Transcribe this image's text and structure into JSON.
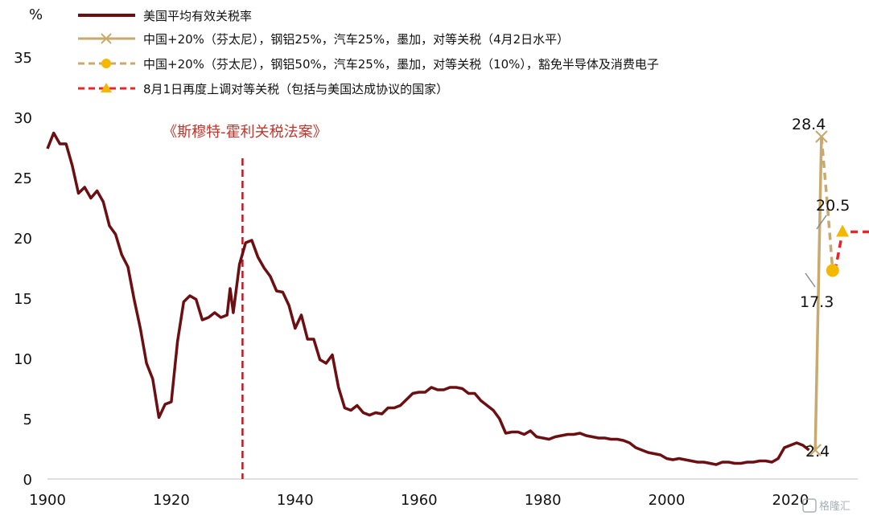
{
  "chart_data": {
    "type": "line",
    "ylabel": "%",
    "xlim": [
      1900,
      2030
    ],
    "ylim": [
      0,
      35
    ],
    "x_ticks": [
      "1900",
      "1920",
      "1940",
      "1960",
      "1980",
      "2000",
      "2020"
    ],
    "y_ticks": [
      "0",
      "5",
      "10",
      "15",
      "20",
      "25",
      "30",
      "35"
    ],
    "grid": false,
    "legend_position": "top-left",
    "colors": {
      "history": "#6b0f12",
      "scenario_april": "#c8a96e",
      "scenario_exempt": "#c8a96e",
      "scenario_august": "#e8262a",
      "marker_circle": "#f5b800",
      "marker_triangle": "#f5b800",
      "act_line": "#c0191f",
      "act_text": "#c0352b"
    },
    "series": [
      {
        "name": "美国平均有效关税率",
        "points": [
          [
            1900,
            27.4
          ],
          [
            1901,
            28.7
          ],
          [
            1902,
            27.8
          ],
          [
            1903,
            27.8
          ],
          [
            1904,
            26.0
          ],
          [
            1905,
            23.7
          ],
          [
            1906,
            24.2
          ],
          [
            1907,
            23.3
          ],
          [
            1908,
            23.9
          ],
          [
            1909,
            23.0
          ],
          [
            1910,
            21.0
          ],
          [
            1911,
            20.3
          ],
          [
            1912,
            18.6
          ],
          [
            1913,
            17.6
          ],
          [
            1914,
            14.9
          ],
          [
            1915,
            12.5
          ],
          [
            1916,
            9.6
          ],
          [
            1917,
            8.3
          ],
          [
            1918,
            5.1
          ],
          [
            1919,
            6.2
          ],
          [
            1920,
            6.4
          ],
          [
            1921,
            11.4
          ],
          [
            1922,
            14.7
          ],
          [
            1923,
            15.2
          ],
          [
            1924,
            14.9
          ],
          [
            1925,
            13.2
          ],
          [
            1926,
            13.4
          ],
          [
            1927,
            13.8
          ],
          [
            1928,
            13.4
          ],
          [
            1929,
            13.6
          ],
          [
            1929.5,
            15.8
          ],
          [
            1930,
            13.8
          ],
          [
            1931,
            17.8
          ],
          [
            1932,
            19.6
          ],
          [
            1933,
            19.8
          ],
          [
            1934,
            18.4
          ],
          [
            1935,
            17.5
          ],
          [
            1936,
            16.8
          ],
          [
            1937,
            15.6
          ],
          [
            1938,
            15.5
          ],
          [
            1939,
            14.4
          ],
          [
            1940,
            12.5
          ],
          [
            1941,
            13.6
          ],
          [
            1942,
            11.6
          ],
          [
            1943,
            11.6
          ],
          [
            1944,
            9.9
          ],
          [
            1945,
            9.6
          ],
          [
            1946,
            10.3
          ],
          [
            1947,
            7.6
          ],
          [
            1948,
            5.9
          ],
          [
            1949,
            5.7
          ],
          [
            1950,
            6.1
          ],
          [
            1951,
            5.5
          ],
          [
            1952,
            5.3
          ],
          [
            1953,
            5.5
          ],
          [
            1954,
            5.4
          ],
          [
            1955,
            5.9
          ],
          [
            1956,
            5.9
          ],
          [
            1957,
            6.1
          ],
          [
            1958,
            6.6
          ],
          [
            1959,
            7.1
          ],
          [
            1960,
            7.2
          ],
          [
            1961,
            7.2
          ],
          [
            1962,
            7.6
          ],
          [
            1963,
            7.4
          ],
          [
            1964,
            7.4
          ],
          [
            1965,
            7.6
          ],
          [
            1966,
            7.6
          ],
          [
            1967,
            7.5
          ],
          [
            1968,
            7.1
          ],
          [
            1969,
            7.1
          ],
          [
            1970,
            6.5
          ],
          [
            1971,
            6.1
          ],
          [
            1972,
            5.7
          ],
          [
            1973,
            5.0
          ],
          [
            1974,
            3.8
          ],
          [
            1975,
            3.9
          ],
          [
            1976,
            3.9
          ],
          [
            1977,
            3.7
          ],
          [
            1978,
            4.0
          ],
          [
            1979,
            3.5
          ],
          [
            1980,
            3.4
          ],
          [
            1981,
            3.3
          ],
          [
            1982,
            3.5
          ],
          [
            1983,
            3.6
          ],
          [
            1984,
            3.7
          ],
          [
            1985,
            3.7
          ],
          [
            1986,
            3.8
          ],
          [
            1987,
            3.6
          ],
          [
            1988,
            3.5
          ],
          [
            1989,
            3.4
          ],
          [
            1990,
            3.4
          ],
          [
            1991,
            3.3
          ],
          [
            1992,
            3.3
          ],
          [
            1993,
            3.2
          ],
          [
            1994,
            3.0
          ],
          [
            1995,
            2.6
          ],
          [
            1996,
            2.4
          ],
          [
            1997,
            2.2
          ],
          [
            1998,
            2.1
          ],
          [
            1999,
            2.0
          ],
          [
            2000,
            1.7
          ],
          [
            2001,
            1.6
          ],
          [
            2002,
            1.7
          ],
          [
            2003,
            1.6
          ],
          [
            2004,
            1.5
          ],
          [
            2005,
            1.4
          ],
          [
            2006,
            1.4
          ],
          [
            2007,
            1.3
          ],
          [
            2008,
            1.2
          ],
          [
            2009,
            1.4
          ],
          [
            2010,
            1.4
          ],
          [
            2011,
            1.3
          ],
          [
            2012,
            1.3
          ],
          [
            2013,
            1.4
          ],
          [
            2014,
            1.4
          ],
          [
            2015,
            1.5
          ],
          [
            2016,
            1.5
          ],
          [
            2017,
            1.4
          ],
          [
            2018,
            1.7
          ],
          [
            2019,
            2.6
          ],
          [
            2020,
            2.8
          ],
          [
            2021,
            3.0
          ],
          [
            2022,
            2.8
          ],
          [
            2023,
            2.4
          ]
        ]
      },
      {
        "name": "中国+20%（芬太尼），钢铝25%，汽车25%，墨加，对等关税（4月2日水平）",
        "points": [
          [
            2024,
            2.4
          ],
          [
            2025,
            28.4
          ]
        ]
      },
      {
        "name": "中国+20%（芬太尼），钢铝50%，汽车25%，墨加，对等关税（10%），豁免半导体及消费电子",
        "points": [
          [
            2025,
            28.4
          ],
          [
            2026,
            22.5
          ],
          [
            2026.8,
            17.3
          ]
        ]
      },
      {
        "name": "8月1日再度上调对等关税（包括与美国达成协议的国家）",
        "points": [
          [
            2026.8,
            17.3
          ],
          [
            2027.4,
            17.8
          ],
          [
            2028.4,
            20.5
          ],
          [
            2033,
            20.5
          ]
        ]
      }
    ],
    "annotations": [
      {
        "text": "《斯穆特-霍利关税法案》",
        "x": 1931.5
      },
      {
        "text": "28.4",
        "x": 2025,
        "y": 28.4
      },
      {
        "text": "20.5",
        "x": 2028.4,
        "y": 20.5
      },
      {
        "text": "17.3",
        "x": 2026.8,
        "y": 17.3
      },
      {
        "text": "2.4",
        "x": 2024,
        "y": 2.4
      }
    ],
    "watermark": "格隆汇"
  }
}
